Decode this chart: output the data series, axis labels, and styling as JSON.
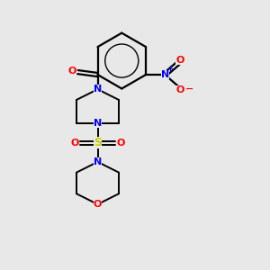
{
  "background_color": "#e8e8e8",
  "bond_color": "#000000",
  "n_color": "#0000ff",
  "o_color": "#ff0000",
  "s_color": "#cccc00",
  "figsize": [
    3.0,
    3.0
  ],
  "dpi": 100,
  "xlim": [
    0,
    10
  ],
  "ylim": [
    0,
    10
  ]
}
